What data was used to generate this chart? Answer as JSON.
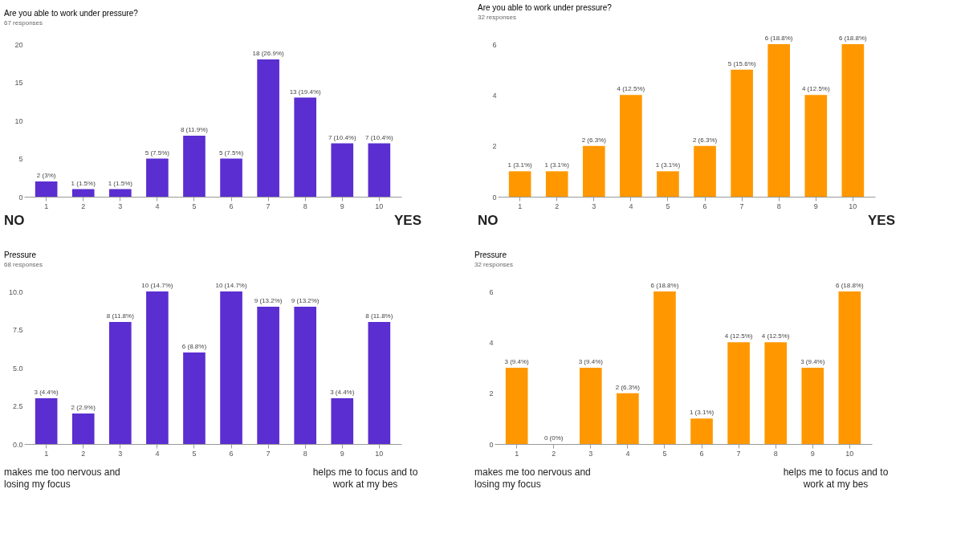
{
  "chart_data": [
    {
      "type": "bar",
      "title": "Are you able to work under pressure?",
      "subtitle": "67 responses",
      "categories": [
        "1",
        "2",
        "3",
        "4",
        "5",
        "6",
        "7",
        "8",
        "9",
        "10"
      ],
      "values": [
        2,
        1,
        1,
        5,
        8,
        5,
        18,
        13,
        7,
        7
      ],
      "color": "#5a2ed0",
      "value_labels": [
        "2 (3%)",
        "1 (1.5%)",
        "1 (1.5%)",
        "5 (7.5%)",
        "8 (11.9%)",
        "5 (7.5%)",
        "18 (26.9%)",
        "13 (19.4%)",
        "7 (10.4%)",
        "7 (10.4%)"
      ],
      "ylim": [
        0,
        20
      ],
      "yticks": [
        0,
        5,
        10,
        15,
        20
      ],
      "grid": false,
      "annotations": [
        "NO",
        "YES"
      ]
    },
    {
      "type": "bar",
      "title": "Are you able to work under pressure?",
      "subtitle": "32 responses",
      "categories": [
        "1",
        "2",
        "3",
        "4",
        "5",
        "6",
        "7",
        "8",
        "9",
        "10"
      ],
      "values": [
        1,
        1,
        2,
        4,
        1,
        2,
        5,
        6,
        4,
        6
      ],
      "color": "#ff9800",
      "value_labels": [
        "1 (3.1%)",
        "1 (3.1%)",
        "2 (6.3%)",
        "4 (12.5%)",
        "1 (3.1%)",
        "2 (6.3%)",
        "5 (15.6%)",
        "6 (18.8%)",
        "4 (12.5%)",
        "6 (18.8%)"
      ],
      "ylim": [
        0,
        6
      ],
      "yticks": [
        0,
        2,
        4,
        6
      ],
      "grid": false,
      "annotations": [
        "NO",
        "YES"
      ]
    },
    {
      "type": "bar",
      "title": "Pressure",
      "subtitle": "68 responses",
      "categories": [
        "1",
        "2",
        "3",
        "4",
        "5",
        "6",
        "7",
        "8",
        "9",
        "10"
      ],
      "values": [
        3,
        2,
        8,
        10,
        6,
        10,
        9,
        9,
        3,
        8
      ],
      "color": "#5a2ed0",
      "value_labels": [
        "3 (4.4%)",
        "2 (2.9%)",
        "8 (11.8%)",
        "10 (14.7%)",
        "6 (8.8%)",
        "10 (14.7%)",
        "9 (13.2%)",
        "9 (13.2%)",
        "3 (4.4%)",
        "8 (11.8%)"
      ],
      "ylim": [
        0,
        10
      ],
      "yticks": [
        {
          "value": 0,
          "label": "0.0"
        },
        {
          "value": 2.5,
          "label": "2.5"
        },
        {
          "value": 5,
          "label": "5.0"
        },
        {
          "value": 7.5,
          "label": "7.5"
        },
        {
          "value": 10,
          "label": "10.0"
        }
      ],
      "grid": false,
      "annotations": [
        "makes me too nervous and losing my focus",
        "helps me to focus and to work at my bes"
      ]
    },
    {
      "type": "bar",
      "title": "Pressure",
      "subtitle": "32 responses",
      "categories": [
        "1",
        "2",
        "3",
        "4",
        "5",
        "6",
        "7",
        "8",
        "9",
        "10"
      ],
      "values": [
        3,
        0,
        3,
        2,
        6,
        1,
        4,
        4,
        3,
        6
      ],
      "color": "#ff9800",
      "value_labels": [
        "3 (9.4%)",
        "0 (0%)",
        "3 (9.4%)",
        "2 (6.3%)",
        "6 (18.8%)",
        "1 (3.1%)",
        "4 (12.5%)",
        "4 (12.5%)",
        "3 (9.4%)",
        "6 (18.8%)"
      ],
      "ylim": [
        0,
        6
      ],
      "yticks": [
        0,
        2,
        4,
        6
      ],
      "grid": false,
      "annotations": [
        "makes me too nervous and losing my focus",
        "helps me to focus and to work at my bes"
      ]
    }
  ]
}
